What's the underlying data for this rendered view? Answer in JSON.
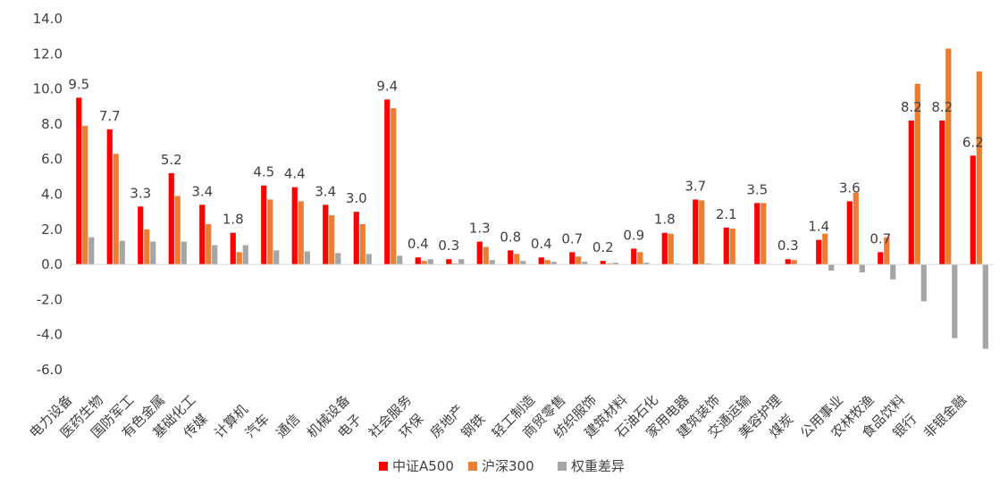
{
  "chart_data": {
    "type": "bar",
    "ylim": [
      -6,
      14
    ],
    "yticks": [
      "-6.0",
      "-4.0",
      "-2.0",
      "0.0",
      "2.0",
      "4.0",
      "6.0",
      "8.0",
      "10.0",
      "12.0",
      "14.0"
    ],
    "grid": false,
    "legend_position": "bottom",
    "categories": [
      "电力设备",
      "医药生物",
      "国防军工",
      "有色金属",
      "基础化工",
      "传媒",
      "计算机",
      "汽车",
      "通信",
      "机械设备",
      "电子",
      "社会服务",
      "环保",
      "房地产",
      "钢铁",
      "轻工制造",
      "商贸零售",
      "纺织服饰",
      "建筑材料",
      "石油石化",
      "家用电器",
      "建筑装饰",
      "交通运输",
      "美容护理",
      "煤炭",
      "公用事业",
      "农林牧渔",
      "食品饮料",
      "银行",
      "非银金融"
    ],
    "series": [
      {
        "name": "中证A500",
        "color": "#ff0000",
        "values": [
          9.5,
          7.7,
          3.3,
          5.2,
          3.4,
          1.8,
          4.5,
          4.4,
          3.4,
          3.0,
          9.4,
          0.4,
          0.3,
          1.3,
          0.8,
          0.4,
          0.7,
          0.2,
          0.9,
          1.8,
          3.7,
          2.1,
          3.5,
          0.3,
          1.4,
          3.6,
          0.7,
          8.2,
          8.2,
          6.2
        ]
      },
      {
        "name": "沪深300",
        "color": "#ed7d31",
        "values": [
          7.9,
          6.3,
          2.0,
          3.9,
          2.3,
          0.7,
          3.7,
          3.6,
          2.8,
          2.3,
          8.9,
          0.2,
          0.05,
          1.0,
          0.6,
          0.25,
          0.45,
          0.05,
          0.7,
          1.75,
          3.65,
          2.05,
          3.5,
          0.25,
          1.75,
          4.1,
          1.55,
          10.3,
          12.3,
          11.0
        ]
      },
      {
        "name": "权重差异",
        "color": "#a5a5a5",
        "values": [
          1.55,
          1.35,
          1.3,
          1.3,
          1.1,
          1.1,
          0.8,
          0.75,
          0.65,
          0.6,
          0.5,
          0.3,
          0.3,
          0.25,
          0.2,
          0.15,
          0.15,
          0.1,
          0.1,
          0.05,
          0.05,
          0.0,
          0.0,
          0.0,
          -0.35,
          -0.45,
          -0.85,
          -2.1,
          -4.2,
          -4.8
        ]
      }
    ],
    "data_labels": [
      "9.5",
      "7.7",
      "3.3",
      "5.2",
      "3.4",
      "1.8",
      "4.5",
      "4.4",
      "3.4",
      "3.0",
      "9.4",
      "0.4",
      "0.3",
      "1.3",
      "0.8",
      "0.4",
      "0.7",
      "0.2",
      "0.9",
      "1.8",
      "3.7",
      "2.1",
      "3.5",
      "0.3",
      "1.4",
      "3.6",
      "0.7",
      "8.2",
      "8.2",
      "6.2"
    ]
  }
}
